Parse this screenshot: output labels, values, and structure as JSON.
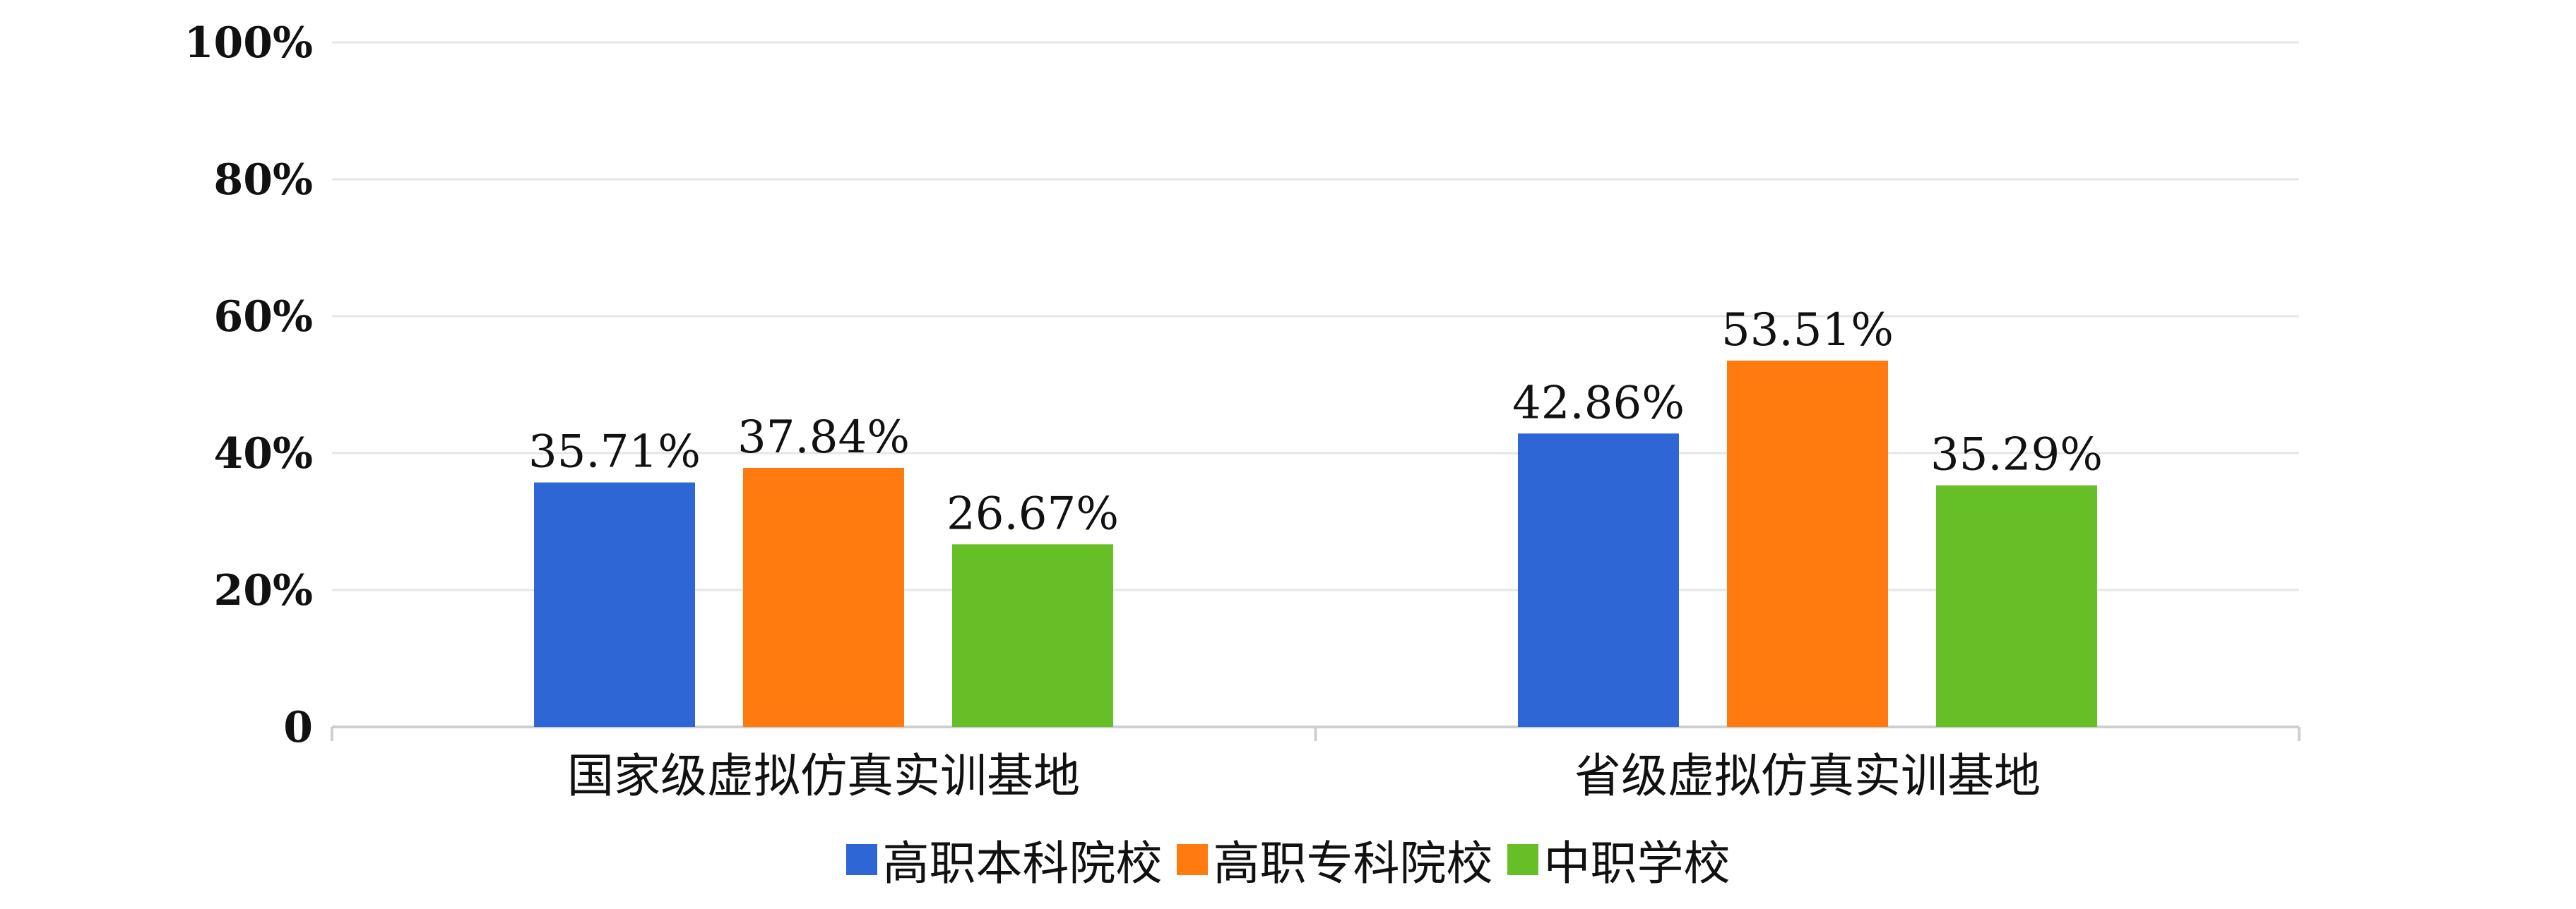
{
  "chart_data": {
    "type": "bar",
    "title": "",
    "xlabel": "",
    "ylabel": "",
    "categories": [
      "国家级虚拟仿真实训基地",
      "省级虚拟仿真实训基地"
    ],
    "series": [
      {
        "name": "高职本科院校",
        "color": "#2E66D6",
        "values": [
          35.71,
          42.86
        ],
        "labels": [
          "35.71%",
          "42.86%"
        ]
      },
      {
        "name": "高职专科院校",
        "color": "#FF7A0F",
        "values": [
          37.84,
          53.51
        ],
        "labels": [
          "37.84%",
          "53.51%"
        ]
      },
      {
        "name": "中职学校",
        "color": "#66BF26",
        "values": [
          26.67,
          35.29
        ],
        "labels": [
          "26.67%",
          "35.29%"
        ]
      }
    ],
    "ylim": [
      0,
      100
    ],
    "yticks": [
      0,
      20,
      40,
      60,
      80,
      100
    ],
    "ytick_labels": [
      "0",
      "20%",
      "40%",
      "60%",
      "80%",
      "100%"
    ],
    "grid": true,
    "legend": "bottom-center"
  }
}
